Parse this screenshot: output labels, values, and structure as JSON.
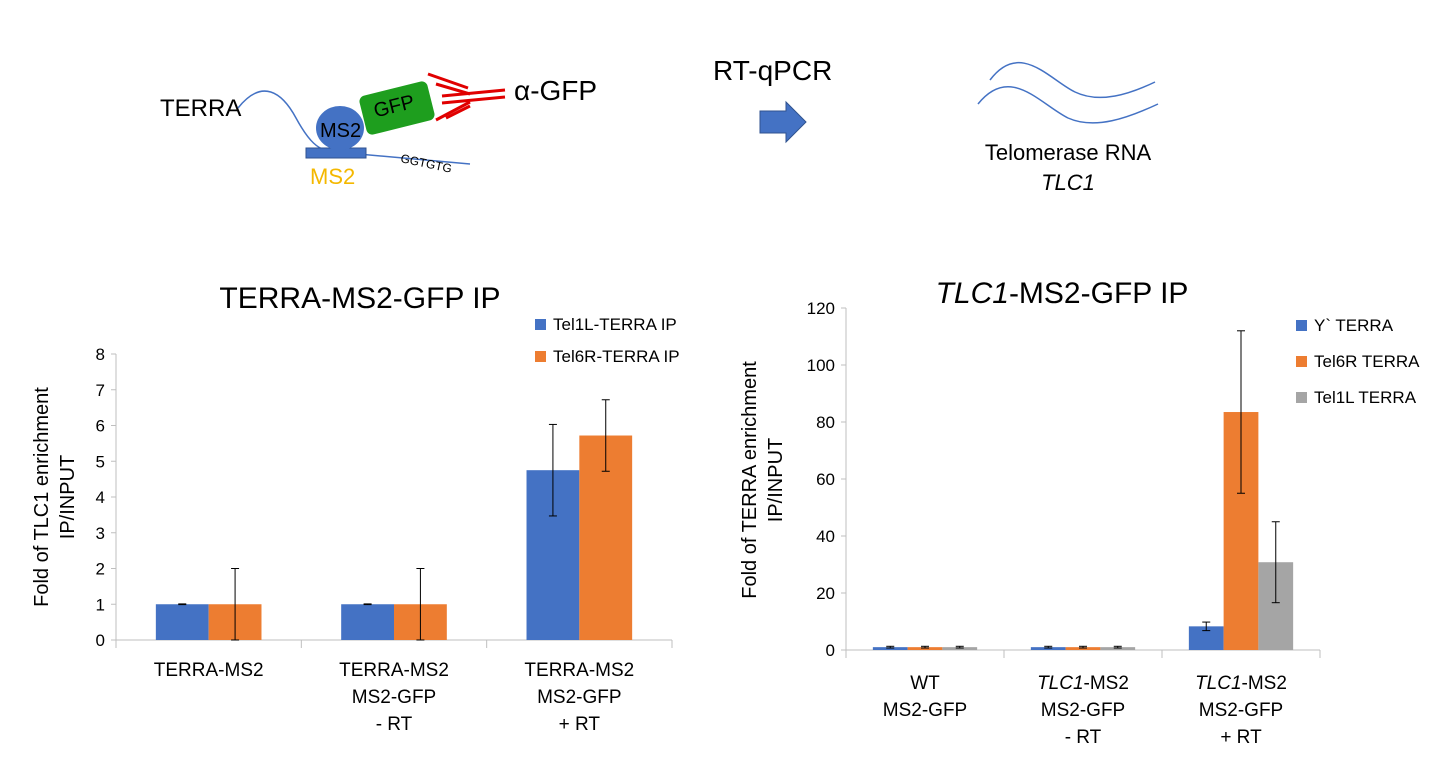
{
  "schematic": {
    "terra_label": "TERRA",
    "ms2_protein_label": "MS2",
    "gfp_label": "GFP",
    "ms2_binding_label": "MS2",
    "sequence_label": "GGTGTG",
    "antibody_label": "α-GFP",
    "method_label": "RT-qPCR",
    "target_label_line1": "Telomerase RNA",
    "target_label_line2": "TLC1",
    "colors": {
      "ms2_protein": "#4472C4",
      "gfp": "#1E9E1E",
      "antibody": "#E00000",
      "ms2_binding_text": "#F4B800",
      "arrow": "#4472C4",
      "rna_line": "#4472C4"
    }
  },
  "chart_data": [
    {
      "type": "bar",
      "title": "TERRA-MS2-GFP IP",
      "ylabel_line1": "Fold of TLC1 enrichment",
      "ylabel_line2": "IP/INPUT",
      "xlabel": "",
      "ylim": [
        0,
        8
      ],
      "yticks": [
        0,
        1,
        2,
        3,
        4,
        5,
        6,
        7,
        8
      ],
      "grid": false,
      "legend_position": "top-right",
      "categories": [
        [
          "TERRA-MS2"
        ],
        [
          "TERRA-MS2",
          "MS2-GFP",
          "- RT"
        ],
        [
          "TERRA-MS2",
          "MS2-GFP",
          "+ RT"
        ]
      ],
      "series": [
        {
          "name": "Tel1L-TERRA IP",
          "color": "#4472C4",
          "values": [
            1,
            1,
            4.75
          ],
          "errors": [
            0.01,
            0.01,
            1.28
          ]
        },
        {
          "name": "Tel6R-TERRA IP",
          "color": "#ED7D31",
          "values": [
            1,
            1,
            5.72
          ],
          "errors": [
            1.0,
            1.0,
            1.0
          ]
        }
      ]
    },
    {
      "type": "bar",
      "title_italic": "TLC1",
      "title_rest": "-MS2-GFP IP",
      "ylabel_line1": "Fold of TERRA enrichment",
      "ylabel_line2": "IP/INPUT",
      "xlabel": "",
      "ylim": [
        0,
        120
      ],
      "yticks": [
        0,
        20,
        40,
        60,
        80,
        100,
        120
      ],
      "grid": false,
      "legend_position": "top-right",
      "categories": [
        [
          {
            "text": "WT"
          },
          {
            "text": "MS2-GFP"
          }
        ],
        [
          {
            "italic": "TLC1",
            "text": "-MS2"
          },
          {
            "text": "MS2-GFP"
          },
          {
            "text": "- RT"
          }
        ],
        [
          {
            "italic": "TLC1",
            "text": "-MS2"
          },
          {
            "text": "MS2-GFP"
          },
          {
            "text": "+ RT"
          }
        ]
      ],
      "series": [
        {
          "name": "Y` TERRA",
          "color": "#4472C4",
          "values": [
            1,
            1,
            8.3
          ],
          "errors": [
            0.3,
            0.3,
            1.5
          ]
        },
        {
          "name": "Tel6R TERRA",
          "color": "#ED7D31",
          "values": [
            1,
            1,
            83.5
          ],
          "errors": [
            0.3,
            0.3,
            28.5
          ]
        },
        {
          "name": "Tel1L TERRA",
          "color": "#A5A5A5",
          "values": [
            1,
            1,
            30.8
          ],
          "errors": [
            0.3,
            0.3,
            14.2
          ]
        }
      ]
    }
  ]
}
